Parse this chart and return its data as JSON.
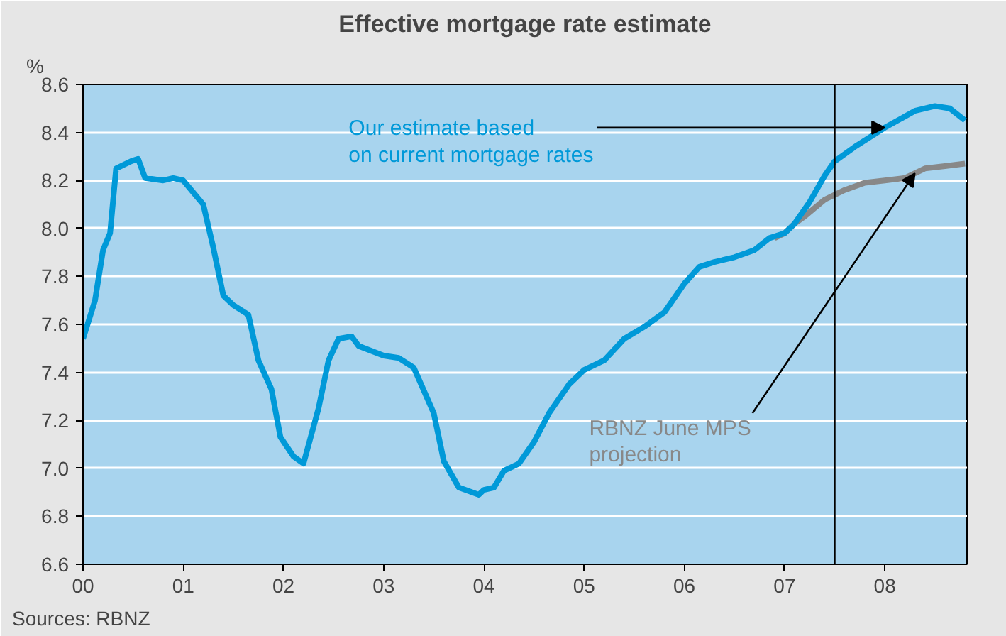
{
  "chart_data": {
    "type": "line",
    "title": "Effective mortgage rate estimate",
    "ylabel": "%",
    "xlim": [
      0,
      8.82
    ],
    "ylim": [
      6.6,
      8.6
    ],
    "xticks": [
      {
        "value": 0,
        "label": "00"
      },
      {
        "value": 1,
        "label": "01"
      },
      {
        "value": 2,
        "label": "02"
      },
      {
        "value": 3,
        "label": "03"
      },
      {
        "value": 4,
        "label": "04"
      },
      {
        "value": 5,
        "label": "05"
      },
      {
        "value": 6,
        "label": "06"
      },
      {
        "value": 7,
        "label": "07"
      },
      {
        "value": 8,
        "label": "08"
      }
    ],
    "yticks": [
      6.6,
      6.8,
      {
        "value": 7,
        "label": "7.0"
      },
      7.2,
      7.4,
      7.6,
      7.8,
      {
        "value": 8,
        "label": "8.0"
      },
      8.2,
      8.4,
      8.6
    ],
    "grid": "y",
    "line_style": "solid",
    "series": [
      {
        "color": "#888888",
        "x": [
          6.9,
          7.0,
          7.1,
          7.2,
          7.4,
          7.6,
          7.8,
          8.0,
          8.2,
          8.4,
          8.6,
          8.8
        ],
        "values": [
          7.96,
          7.98,
          8.02,
          8.05,
          8.12,
          8.16,
          8.19,
          8.2,
          8.21,
          8.25,
          8.26,
          8.27
        ]
      },
      {
        "color": "#0099d8",
        "x": [
          0,
          0.12,
          0.2,
          0.27,
          0.33,
          0.48,
          0.55,
          0.62,
          0.8,
          0.9,
          1.0,
          1.1,
          1.2,
          1.3,
          1.4,
          1.5,
          1.65,
          1.75,
          1.88,
          1.97,
          2.1,
          2.2,
          2.35,
          2.45,
          2.55,
          2.68,
          2.75,
          3.0,
          3.15,
          3.3,
          3.5,
          3.6,
          3.75,
          3.95,
          4.0,
          4.1,
          4.2,
          4.35,
          4.5,
          4.65,
          4.85,
          5.0,
          5.2,
          5.4,
          5.6,
          5.8,
          6.0,
          6.15,
          6.3,
          6.5,
          6.7,
          6.85,
          7.0,
          7.1,
          7.25,
          7.4,
          7.5,
          7.7,
          8.0,
          8.3,
          8.5,
          8.65,
          8.8
        ],
        "values": [
          7.54,
          7.7,
          7.91,
          7.98,
          8.25,
          8.28,
          8.29,
          8.21,
          8.2,
          8.21,
          8.2,
          8.15,
          8.1,
          7.92,
          7.72,
          7.68,
          7.64,
          7.45,
          7.33,
          7.13,
          7.05,
          7.02,
          7.25,
          7.45,
          7.54,
          7.55,
          7.51,
          7.47,
          7.46,
          7.42,
          7.23,
          7.03,
          6.92,
          6.89,
          6.91,
          6.92,
          6.99,
          7.02,
          7.11,
          7.23,
          7.35,
          7.41,
          7.45,
          7.54,
          7.59,
          7.65,
          7.77,
          7.84,
          7.86,
          7.88,
          7.91,
          7.96,
          7.98,
          8.02,
          8.11,
          8.22,
          8.28,
          8.34,
          8.42,
          8.49,
          8.51,
          8.5,
          8.45
        ]
      }
    ],
    "ref_lines": [
      {
        "axis": "x",
        "value": 7.5,
        "color": "#000000"
      }
    ],
    "annotations": [
      {
        "text": "Our estimate based\non current mortgage rates",
        "x": 8.0,
        "y": 8.42
      },
      {
        "text": "RBNZ June MPS\nprojection",
        "x": 8.3,
        "y": 8.23
      },
      "Sources: RBNZ"
    ]
  }
}
